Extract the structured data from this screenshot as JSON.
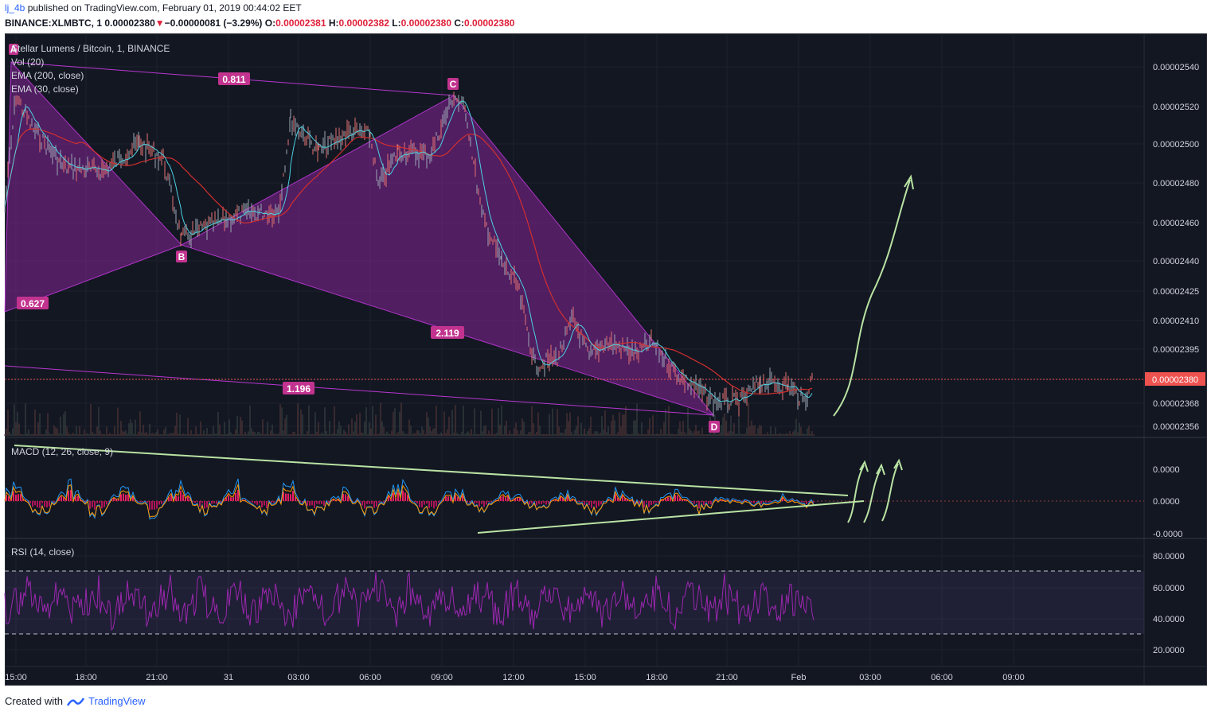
{
  "header": {
    "user": "lj_4b",
    "published": "published on TradingView.com, February 01, 2019 00:44:02 EET",
    "symbol": "BINANCE:XLMBTC, 1",
    "price": "0.00002380",
    "arrow": "▼",
    "change": "−0.00000081 (−3.29%)",
    "o_label": "O:",
    "o": "0.00002381",
    "h_label": "H:",
    "h": "0.00002382",
    "l_label": "L:",
    "l": "0.00002380",
    "c_label": "C:",
    "c": "0.00002380"
  },
  "legend": {
    "title": "Stellar Lumens / Bitcoin, 1, BINANCE",
    "vol": "Vol (20)",
    "ema200": "EMA (200, close)",
    "ema30": "EMA (30, close)",
    "macd": "MACD (12, 26, close, 9)",
    "rsi": "RSI (14, close)"
  },
  "pattern_labels": {
    "A": "A",
    "B": "B",
    "C": "C",
    "D": "D",
    "r1": "0.811",
    "r2": "0.627",
    "r3": "2.119",
    "r4": "1.196"
  },
  "footer": {
    "created": "Created with",
    "brand": "TradingView"
  },
  "colors": {
    "background": "#131722",
    "pattern_fill": "#9c27b0",
    "pattern_label": "#c2338f",
    "ema200": "#d32f2f",
    "ema30": "#4dd0e1",
    "arrows": "#b9e3a3",
    "rsi": "#9c27b0",
    "last_price": "#ef5350"
  },
  "chart_data": [
    {
      "type": "line",
      "title": "Stellar Lumens / Bitcoin, 1, BINANCE",
      "price_ticks": [
        "0.00002540",
        "0.00002520",
        "0.00002500",
        "0.00002480",
        "0.00002460",
        "0.00002440",
        "0.00002425",
        "0.00002410",
        "0.00002395",
        "0.00002380",
        "0.00002368",
        "0.00002356"
      ],
      "last_price": "0.00002380",
      "time_ticks": [
        "15:00",
        "18:00",
        "21:00",
        "31",
        "03:00",
        "06:00",
        "09:00",
        "12:00",
        "15:00",
        "18:00",
        "21:00",
        "Feb",
        "03:00",
        "06:00",
        "09:00"
      ],
      "harmonic_points": {
        "A": 2.546e-05,
        "B": 2.448e-05,
        "C": 2.524e-05,
        "D": 2.362e-05
      },
      "series": [
        {
          "name": "EMA (200, close)",
          "values": [
            2.4e-05,
            2.46e-05,
            2.48e-05,
            2.49e-05,
            2.49e-05,
            2.48e-05,
            2.47e-05,
            2.47e-05,
            2.48e-05,
            2.49e-05,
            2.49e-05,
            2.5e-05,
            2.49e-05,
            2.47e-05,
            2.45e-05,
            2.43e-05,
            2.41e-05,
            2.4e-05,
            2.39e-05,
            2.38e-05,
            2.38e-05,
            2.38e-05
          ]
        }
      ]
    },
    {
      "type": "line",
      "title": "MACD (12, 26, close, 9)",
      "y_ticks": [
        "0.0000",
        "0.0000",
        "-0.0000"
      ]
    },
    {
      "type": "line",
      "title": "RSI (14, close)",
      "y_ticks": [
        "80.0000",
        "60.0000",
        "40.0000",
        "20.0000"
      ],
      "bands": [
        30,
        70
      ]
    }
  ]
}
